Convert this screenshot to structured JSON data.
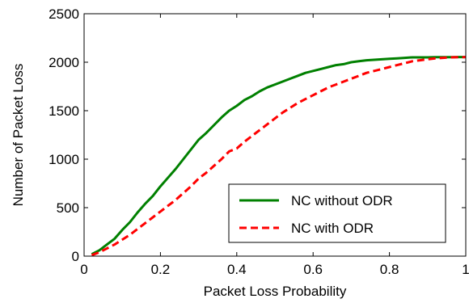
{
  "chart_data": {
    "type": "line",
    "xlabel": "Packet Loss Probability",
    "ylabel": "Number of Packet Loss",
    "xlim": [
      0,
      1
    ],
    "ylim": [
      0,
      2500
    ],
    "x_ticks": [
      0,
      0.2,
      0.4,
      0.6,
      0.8,
      1
    ],
    "x_tick_labels": [
      "0",
      "0.2",
      "0.4",
      "0.6",
      "0.8",
      "1"
    ],
    "y_ticks": [
      0,
      500,
      1000,
      1500,
      2000,
      2500
    ],
    "y_tick_labels": [
      "0",
      "500",
      "1000",
      "1500",
      "2000",
      "2500"
    ],
    "grid": false,
    "legend_position": "bottom-right",
    "series": [
      {
        "name": "NC without ODR",
        "color": "#008000",
        "line_style": "solid",
        "x": [
          0.02,
          0.04,
          0.06,
          0.08,
          0.1,
          0.12,
          0.14,
          0.16,
          0.18,
          0.2,
          0.22,
          0.24,
          0.26,
          0.28,
          0.3,
          0.32,
          0.34,
          0.36,
          0.38,
          0.4,
          0.42,
          0.44,
          0.46,
          0.48,
          0.5,
          0.52,
          0.54,
          0.56,
          0.58,
          0.6,
          0.62,
          0.64,
          0.66,
          0.68,
          0.7,
          0.72,
          0.74,
          0.76,
          0.78,
          0.8,
          0.82,
          0.84,
          0.86,
          0.88,
          0.9,
          0.92,
          0.94,
          0.96,
          0.98,
          1.0
        ],
        "y": [
          20,
          60,
          120,
          180,
          270,
          350,
          450,
          540,
          620,
          720,
          810,
          900,
          1000,
          1100,
          1200,
          1270,
          1350,
          1430,
          1500,
          1550,
          1610,
          1650,
          1700,
          1740,
          1770,
          1800,
          1830,
          1860,
          1890,
          1910,
          1930,
          1950,
          1970,
          1980,
          2000,
          2010,
          2020,
          2025,
          2030,
          2035,
          2040,
          2045,
          2050,
          2050,
          2050,
          2052,
          2052,
          2052,
          2053,
          2053
        ]
      },
      {
        "name": "NC with ODR",
        "color": "#ff0000",
        "line_style": "dashed",
        "x": [
          0.02,
          0.04,
          0.06,
          0.08,
          0.1,
          0.12,
          0.14,
          0.16,
          0.18,
          0.2,
          0.22,
          0.24,
          0.26,
          0.28,
          0.3,
          0.32,
          0.34,
          0.36,
          0.38,
          0.4,
          0.42,
          0.44,
          0.46,
          0.48,
          0.5,
          0.52,
          0.54,
          0.56,
          0.58,
          0.6,
          0.62,
          0.64,
          0.66,
          0.68,
          0.7,
          0.72,
          0.74,
          0.76,
          0.78,
          0.8,
          0.82,
          0.84,
          0.86,
          0.88,
          0.9,
          0.92,
          0.94,
          0.96,
          0.98,
          1.0
        ],
        "y": [
          10,
          40,
          80,
          120,
          170,
          220,
          280,
          340,
          400,
          460,
          520,
          580,
          650,
          720,
          800,
          860,
          930,
          1000,
          1080,
          1110,
          1180,
          1240,
          1300,
          1360,
          1420,
          1480,
          1530,
          1580,
          1620,
          1660,
          1700,
          1740,
          1770,
          1800,
          1830,
          1860,
          1890,
          1910,
          1930,
          1950,
          1970,
          1990,
          2010,
          2020,
          2030,
          2040,
          2045,
          2050,
          2052,
          2053
        ]
      }
    ]
  }
}
